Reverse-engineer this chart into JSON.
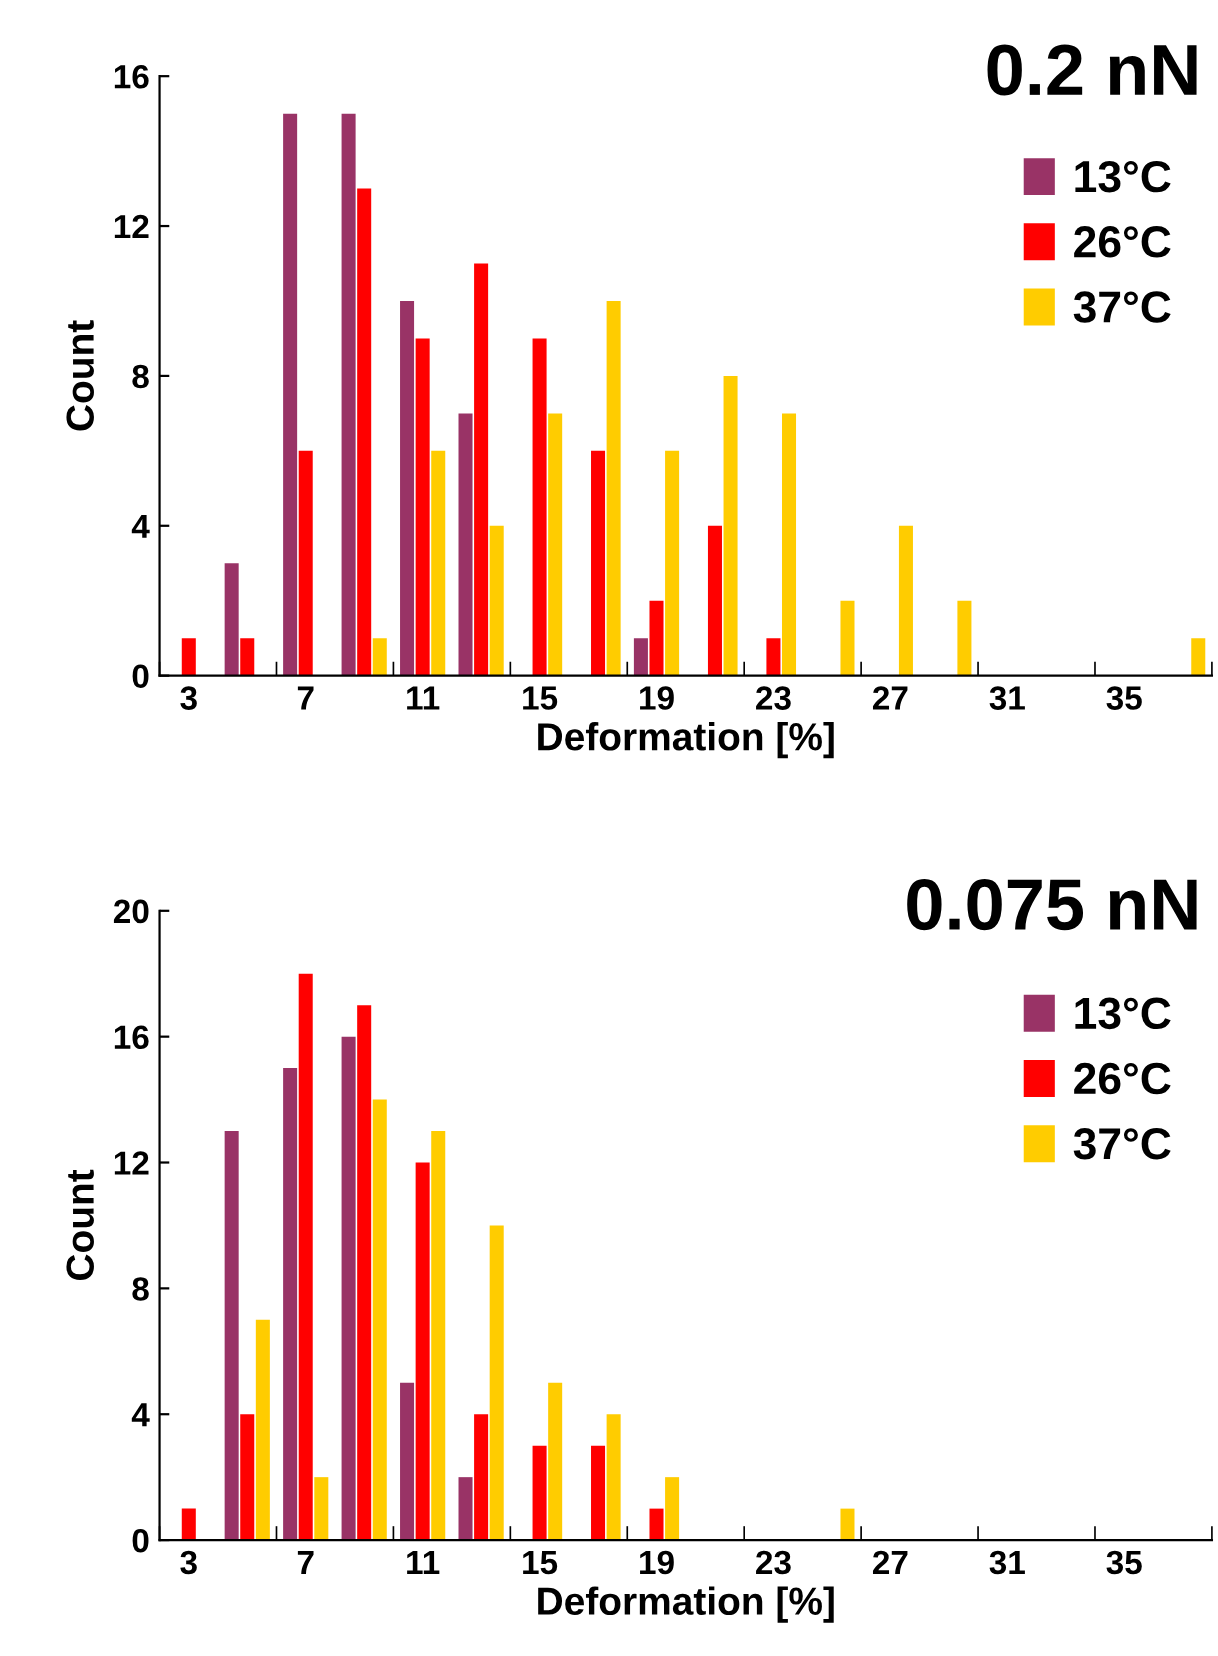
{
  "chart_data": [
    {
      "type": "bar",
      "title": "0.2 nN",
      "xlabel": "Deformation [%]",
      "ylabel": "Count",
      "categories": [
        "3",
        null,
        "7",
        null,
        "11",
        null,
        "15",
        null,
        "19",
        null,
        "23",
        null,
        "27",
        null,
        "31",
        null,
        "35",
        null
      ],
      "series": [
        {
          "name": "13°C",
          "color": "#993366",
          "values": [
            0,
            3,
            15,
            15,
            10,
            7,
            0,
            0,
            1,
            0,
            0,
            0,
            0,
            0,
            0,
            0,
            0,
            0
          ]
        },
        {
          "name": "26°C",
          "color": "#ff0000",
          "values": [
            1,
            1,
            6,
            13,
            9,
            11,
            9,
            6,
            2,
            4,
            1,
            0,
            0,
            0,
            0,
            0,
            0,
            0
          ]
        },
        {
          "name": "37°C",
          "color": "#ffcc00",
          "values": [
            0,
            0,
            0,
            1,
            6,
            4,
            7,
            10,
            6,
            8,
            7,
            2,
            4,
            2,
            0,
            0,
            0,
            1
          ]
        }
      ],
      "ylim": [
        0,
        16
      ],
      "yticks": [
        0,
        4,
        8,
        12,
        16
      ],
      "grid": false,
      "legend": "top right"
    },
    {
      "type": "bar",
      "title": "0.075 nN",
      "xlabel": "Deformation [%]",
      "ylabel": "Count",
      "categories": [
        "3",
        null,
        "7",
        null,
        "11",
        null,
        "15",
        null,
        "19",
        null,
        "23",
        null,
        "27",
        null,
        "31",
        null,
        "35",
        null
      ],
      "series": [
        {
          "name": "13°C",
          "color": "#993366",
          "values": [
            0,
            13,
            15,
            16,
            5,
            2,
            0,
            0,
            0,
            0,
            0,
            0,
            0,
            0,
            0,
            0,
            0,
            0
          ]
        },
        {
          "name": "26°C",
          "color": "#ff0000",
          "values": [
            1,
            4,
            18,
            17,
            12,
            4,
            3,
            3,
            1,
            0,
            0,
            0,
            0,
            0,
            0,
            0,
            0,
            0
          ]
        },
        {
          "name": "37°C",
          "color": "#ffcc00",
          "values": [
            0,
            7,
            2,
            14,
            13,
            10,
            5,
            4,
            2,
            0,
            0,
            1,
            0,
            0,
            0,
            0,
            0,
            0
          ]
        }
      ],
      "ylim": [
        0,
        20
      ],
      "yticks": [
        0,
        4,
        8,
        12,
        16,
        20
      ],
      "grid": false,
      "legend": "top right"
    }
  ]
}
